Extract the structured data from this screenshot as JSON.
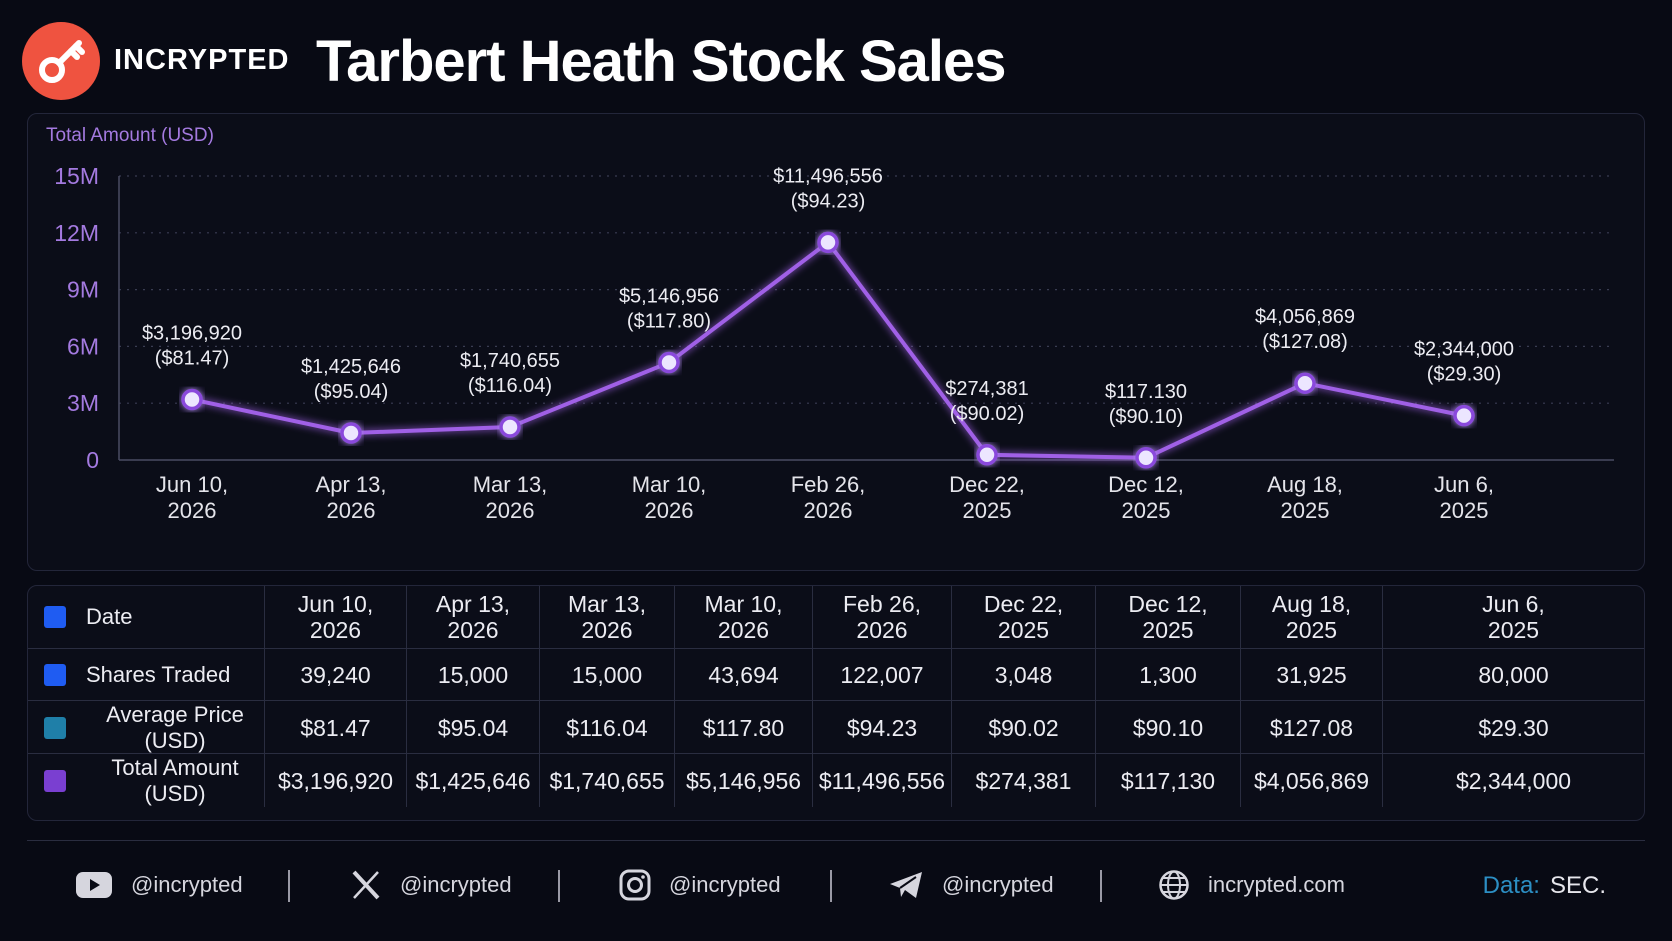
{
  "brand": {
    "name": "INCRYPTED",
    "logo_icon": "key-icon",
    "logo_color": "#ef5340"
  },
  "title": "Tarbert Heath Stock Sales",
  "chart_data": {
    "type": "line",
    "ylabel": "Total Amount (USD)",
    "ylim": [
      0,
      15000000
    ],
    "yticks": [
      0,
      3000000,
      6000000,
      9000000,
      12000000,
      15000000
    ],
    "ytick_labels": [
      "0",
      "3M",
      "6M",
      "9M",
      "12M",
      "15M"
    ],
    "grid": "horizontal dotted",
    "categories": [
      "Jun 10,\n2026",
      "Apr 13,\n2026",
      "Mar 13,\n2026",
      "Mar 10,\n2026",
      "Feb 26,\n2026",
      "Dec 22,\n2025",
      "Dec 12,\n2025",
      "Aug 18,\n2025",
      "Jun 6,\n2025"
    ],
    "values": [
      3196920,
      1425646,
      1740655,
      5146956,
      11496556,
      274381,
      117130,
      4056869,
      2344000
    ],
    "point_labels": [
      [
        "$3,196,920",
        "($81.47)"
      ],
      [
        "$1,425,646",
        "($95.04)"
      ],
      [
        "$1,740,655",
        "($116.04)"
      ],
      [
        "$5,146,956",
        "($117.80)"
      ],
      [
        "$11,496,556",
        "($94.23)"
      ],
      [
        "$274,381",
        "($90.02)"
      ],
      [
        "$117.130",
        "($90.10)"
      ],
      [
        "$4,056,869",
        "($127.08)"
      ],
      [
        "$2,344,000",
        "($29.30)"
      ]
    ],
    "line_color": "#a061e6"
  },
  "table": {
    "rows": [
      {
        "label": "Date",
        "swatch": "#1f5cf2",
        "cells": [
          "Jun 10,\n2026",
          "Apr 13,\n2026",
          "Mar 13,\n2026",
          "Mar 10,\n2026",
          "Feb 26,\n2026",
          "Dec 22,\n2025",
          "Dec 12,\n2025",
          "Aug 18,\n2025",
          "Jun 6,\n2025"
        ]
      },
      {
        "label": "Shares Traded",
        "swatch": "#1f5cf2",
        "cells": [
          "39,240",
          "15,000",
          "15,000",
          "43,694",
          "122,007",
          "3,048",
          "1,300",
          "31,925",
          "80,000"
        ]
      },
      {
        "label": "Average Price (USD)",
        "swatch": "#1f7fa8",
        "cells": [
          "$81.47",
          "$95.04",
          "$116.04",
          "$117.80",
          "$94.23",
          "$90.02",
          "$90.10",
          "$127.08",
          "$29.30"
        ]
      },
      {
        "label": "Total Amount (USD)",
        "swatch": "#7a3fd1",
        "cells": [
          "$3,196,920",
          "$1,425,646",
          "$1,740,655",
          "$5,146,956",
          "$11,496,556",
          "$274,381",
          "$117,130",
          "$4,056,869",
          "$2,344,000"
        ]
      }
    ]
  },
  "footer": {
    "socials": [
      {
        "icon": "youtube-icon",
        "handle": "@incrypted"
      },
      {
        "icon": "x-icon",
        "handle": "@incrypted"
      },
      {
        "icon": "instagram-icon",
        "handle": "@incrypted"
      },
      {
        "icon": "telegram-icon",
        "handle": "@incrypted"
      },
      {
        "icon": "globe-icon",
        "handle": "incrypted.com"
      }
    ],
    "source_label": "Data:",
    "source_value": "SEC."
  }
}
